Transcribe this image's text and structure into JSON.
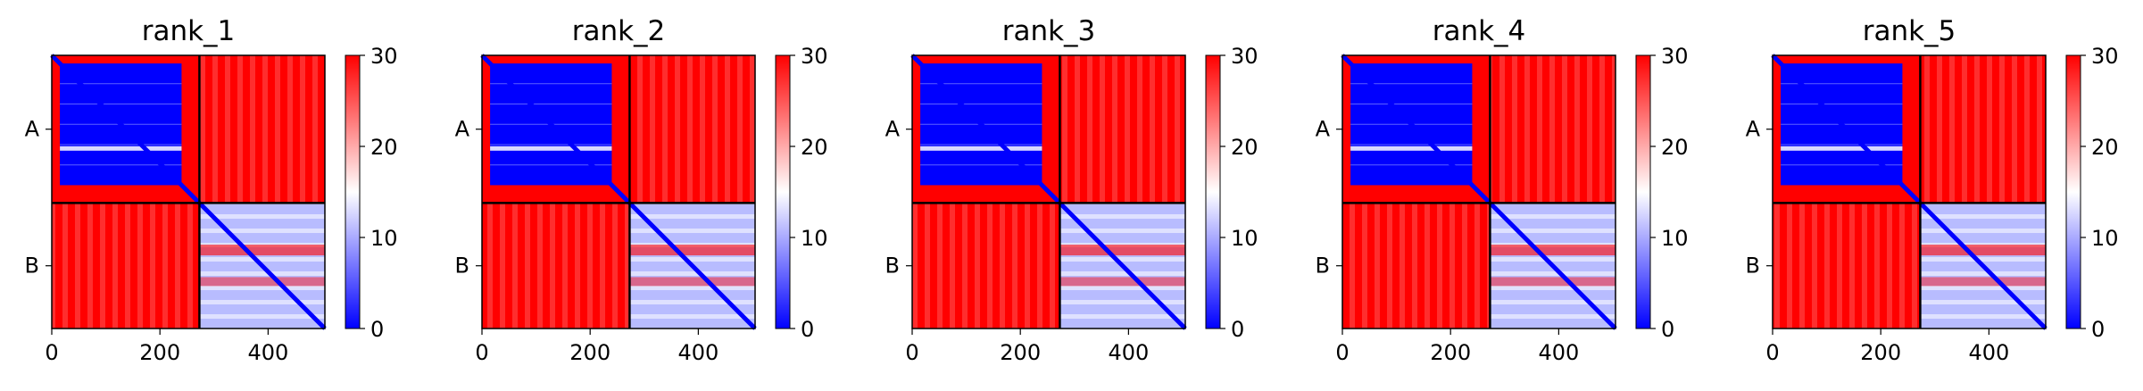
{
  "chart_data": [
    {
      "type": "heatmap",
      "title": "rank_1",
      "row_labels": [
        "A",
        "B"
      ],
      "xticks": [
        0,
        200,
        400
      ],
      "xlim": [
        0,
        505
      ],
      "chain_boundary": 273,
      "colorbar": {
        "ticks": [
          0,
          10,
          20,
          30
        ],
        "range": [
          0,
          30
        ],
        "colormap": "bwr"
      }
    },
    {
      "type": "heatmap",
      "title": "rank_2",
      "row_labels": [
        "A",
        "B"
      ],
      "xticks": [
        0,
        200,
        400
      ],
      "xlim": [
        0,
        505
      ],
      "chain_boundary": 273,
      "colorbar": {
        "ticks": [
          0,
          10,
          20,
          30
        ],
        "range": [
          0,
          30
        ],
        "colormap": "bwr"
      }
    },
    {
      "type": "heatmap",
      "title": "rank_3",
      "row_labels": [
        "A",
        "B"
      ],
      "xticks": [
        0,
        200,
        400
      ],
      "xlim": [
        0,
        505
      ],
      "chain_boundary": 273,
      "colorbar": {
        "ticks": [
          0,
          10,
          20,
          30
        ],
        "range": [
          0,
          30
        ],
        "colormap": "bwr"
      }
    },
    {
      "type": "heatmap",
      "title": "rank_4",
      "row_labels": [
        "A",
        "B"
      ],
      "xticks": [
        0,
        200,
        400
      ],
      "xlim": [
        0,
        505
      ],
      "chain_boundary": 273,
      "colorbar": {
        "ticks": [
          0,
          10,
          20,
          30
        ],
        "range": [
          0,
          30
        ],
        "colormap": "bwr"
      }
    },
    {
      "type": "heatmap",
      "title": "rank_5",
      "row_labels": [
        "A",
        "B"
      ],
      "xticks": [
        0,
        200,
        400
      ],
      "xlim": [
        0,
        505
      ],
      "chain_boundary": 273,
      "colorbar": {
        "ticks": [
          0,
          10,
          20,
          30
        ],
        "range": [
          0,
          30
        ],
        "colormap": "bwr"
      }
    }
  ],
  "colors": {
    "low": "#0000ff",
    "mid": "#ffffff",
    "high": "#ff0000",
    "divider": "#000000"
  }
}
